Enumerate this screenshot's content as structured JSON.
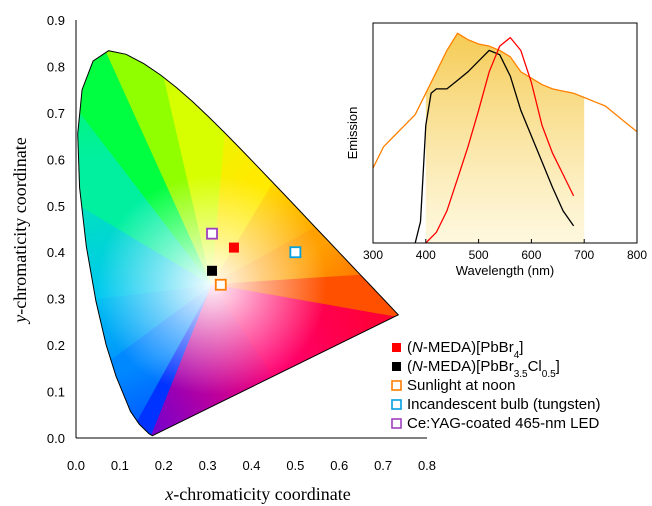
{
  "chart_data": [
    {
      "type": "scatter",
      "xlabel": "x-chromaticity coordinate",
      "ylabel": "y-chromaticity coordinate",
      "xlim": [
        0.0,
        0.8
      ],
      "ylim": [
        0.0,
        0.9
      ],
      "x_ticks": [
        "0.0",
        "0.1",
        "0.2",
        "0.3",
        "0.4",
        "0.5",
        "0.6",
        "0.7",
        "0.8"
      ],
      "y_ticks": [
        "0.0",
        "0.1",
        "0.2",
        "0.3",
        "0.4",
        "0.5",
        "0.6",
        "0.7",
        "0.8",
        "0.9"
      ],
      "background": "CIE 1931 chromaticity diagram",
      "legend_position": "bottom-right",
      "series": [
        {
          "name": "(N-MEDA)[PbBr4]",
          "marker": "filled-square",
          "color": "#ff0000",
          "x": 0.36,
          "y": 0.41
        },
        {
          "name": "(N-MEDA)[PbBr3.5Cl0.5]",
          "marker": "filled-square",
          "color": "#000000",
          "x": 0.31,
          "y": 0.36
        },
        {
          "name": "Sunlight at noon",
          "marker": "open-square",
          "color": "#ff7f00",
          "x": 0.33,
          "y": 0.33
        },
        {
          "name": "Incandescent bulb (tungsten)",
          "marker": "open-square",
          "color": "#00a0e0",
          "x": 0.5,
          "y": 0.4
        },
        {
          "name": "Ce:YAG-coated 465-nm LED",
          "marker": "open-square",
          "color": "#a040c0",
          "x": 0.31,
          "y": 0.44
        }
      ]
    },
    {
      "type": "line",
      "xlabel": "Wavelength (nm)",
      "ylabel": "Emission",
      "xlim": [
        300,
        800
      ],
      "ylim": [
        0,
        1
      ],
      "x_ticks": [
        "300",
        "400",
        "500",
        "600",
        "700",
        "800"
      ],
      "series": [
        {
          "color": "#ff8000",
          "x": [
            300,
            320,
            340,
            360,
            380,
            400,
            420,
            440,
            460,
            480,
            500,
            520,
            540,
            560,
            580,
            600,
            620,
            640,
            660,
            680,
            700,
            720,
            740,
            760,
            780,
            800
          ],
          "y": [
            0.35,
            0.45,
            0.5,
            0.55,
            0.6,
            0.7,
            0.8,
            0.9,
            0.98,
            0.95,
            0.93,
            0.92,
            0.9,
            0.87,
            0.8,
            0.77,
            0.74,
            0.72,
            0.71,
            0.7,
            0.68,
            0.66,
            0.64,
            0.6,
            0.56,
            0.52
          ]
        },
        {
          "color": "#000000",
          "x": [
            380,
            390,
            400,
            410,
            420,
            440,
            460,
            480,
            500,
            520,
            540,
            560,
            580,
            600,
            620,
            640,
            660,
            680
          ],
          "y": [
            0.0,
            0.1,
            0.55,
            0.7,
            0.72,
            0.72,
            0.76,
            0.8,
            0.85,
            0.9,
            0.88,
            0.78,
            0.62,
            0.5,
            0.38,
            0.26,
            0.15,
            0.08
          ]
        },
        {
          "color": "#ff0000",
          "x": [
            400,
            420,
            440,
            460,
            480,
            500,
            520,
            540,
            560,
            580,
            600,
            620,
            640,
            660,
            680
          ],
          "y": [
            0.0,
            0.05,
            0.15,
            0.3,
            0.45,
            0.62,
            0.8,
            0.92,
            0.96,
            0.9,
            0.75,
            0.55,
            0.42,
            0.32,
            0.22
          ]
        }
      ]
    }
  ],
  "legend_parts": [
    [
      [
        "(",
        false,
        false
      ],
      [
        "N",
        true,
        false
      ],
      [
        "-MEDA)[PbBr",
        false,
        false
      ],
      [
        "4",
        false,
        true
      ],
      [
        "]",
        false,
        false
      ]
    ],
    [
      [
        "(",
        false,
        false
      ],
      [
        "N",
        true,
        false
      ],
      [
        "-MEDA)[PbBr",
        false,
        false
      ],
      [
        "3.5",
        false,
        true
      ],
      [
        "Cl",
        false,
        false
      ],
      [
        "0.5",
        false,
        true
      ],
      [
        "]",
        false,
        false
      ]
    ],
    [
      [
        "Sunlight at noon",
        false,
        false
      ]
    ],
    [
      [
        "Incandescent bulb (tungsten)",
        false,
        false
      ]
    ],
    [
      [
        "Ce:YAG-coated 465-nm LED",
        false,
        false
      ]
    ]
  ],
  "axis_title_parts": {
    "x": [
      [
        "x",
        true
      ],
      [
        "-chromaticity coordinate",
        false
      ]
    ],
    "y": [
      [
        "y",
        true
      ],
      [
        "-chromaticity coordinate",
        false
      ]
    ]
  }
}
